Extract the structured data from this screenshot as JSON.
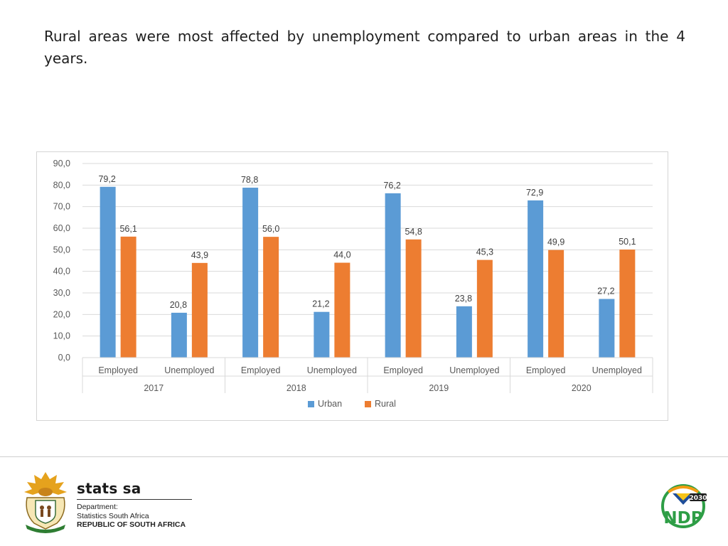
{
  "slide": {
    "headline": "Rural areas were most affected by unemployment compared to urban areas in the 4 years."
  },
  "footer": {
    "brand_name": "stats sa",
    "dept_line1": "Department:",
    "dept_line2": "Statistics South Africa",
    "dept_line3": "REPUBLIC OF SOUTH AFRICA",
    "ndp_badge_top": "2030",
    "ndp_badge_main": "NDP"
  },
  "chart_data": {
    "type": "bar",
    "title": "",
    "xlabel": "",
    "ylabel": "",
    "ylim": [
      0,
      90
    ],
    "ytick_step": 10,
    "ytick_labels": [
      "0,0",
      "10,0",
      "20,0",
      "30,0",
      "40,0",
      "50,0",
      "60,0",
      "70,0",
      "80,0",
      "90,0"
    ],
    "grid": true,
    "legend_position": "bottom",
    "groups": [
      "2017",
      "2018",
      "2019",
      "2020"
    ],
    "categories": [
      "Employed",
      "Unemployed",
      "Employed",
      "Unemployed",
      "Employed",
      "Unemployed",
      "Employed",
      "Unemployed"
    ],
    "series": [
      {
        "name": "Urban",
        "color": "#5b9bd5",
        "values": [
          79.2,
          20.8,
          78.8,
          21.2,
          76.2,
          23.8,
          72.9,
          27.2
        ],
        "labels": [
          "79,2",
          "20,8",
          "78,8",
          "21,2",
          "76,2",
          "23,8",
          "72,9",
          "27,2"
        ]
      },
      {
        "name": "Rural",
        "color": "#ed7d31",
        "values": [
          56.1,
          43.9,
          56.0,
          44.0,
          54.8,
          45.3,
          49.9,
          50.1
        ],
        "labels": [
          "56,1",
          "43,9",
          "56,0",
          "44,0",
          "54,8",
          "45,3",
          "49,9",
          "50,1"
        ]
      }
    ]
  }
}
